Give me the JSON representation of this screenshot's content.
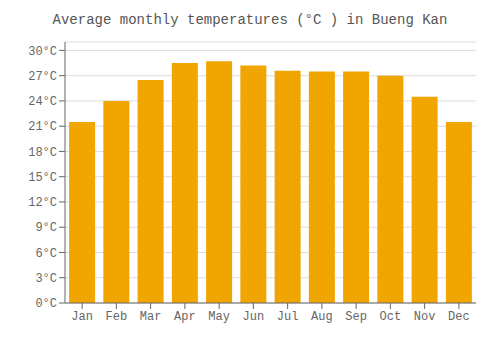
{
  "chart_data": {
    "type": "bar",
    "title": "Average monthly temperatures (°C ) in Bueng Kan",
    "categories": [
      "Jan",
      "Feb",
      "Mar",
      "Apr",
      "May",
      "Jun",
      "Jul",
      "Aug",
      "Sep",
      "Oct",
      "Nov",
      "Dec"
    ],
    "values": [
      21.5,
      24.0,
      26.5,
      28.5,
      28.7,
      28.2,
      27.6,
      27.5,
      27.5,
      27.0,
      24.5,
      21.5
    ],
    "color": "#F0A500",
    "ylim": [
      0,
      31
    ],
    "yticks": [
      {
        "value": 0,
        "label": "0°C"
      },
      {
        "value": 3,
        "label": "3°C"
      },
      {
        "value": 6,
        "label": "6°C"
      },
      {
        "value": 9,
        "label": "9°C"
      },
      {
        "value": 12,
        "label": "12°C"
      },
      {
        "value": 15,
        "label": "15°C"
      },
      {
        "value": 18,
        "label": "18°C"
      },
      {
        "value": 21,
        "label": "21°C"
      },
      {
        "value": 24,
        "label": "24°C"
      },
      {
        "value": 27,
        "label": "27°C"
      },
      {
        "value": 30,
        "label": "30°C"
      }
    ],
    "grid": true
  }
}
